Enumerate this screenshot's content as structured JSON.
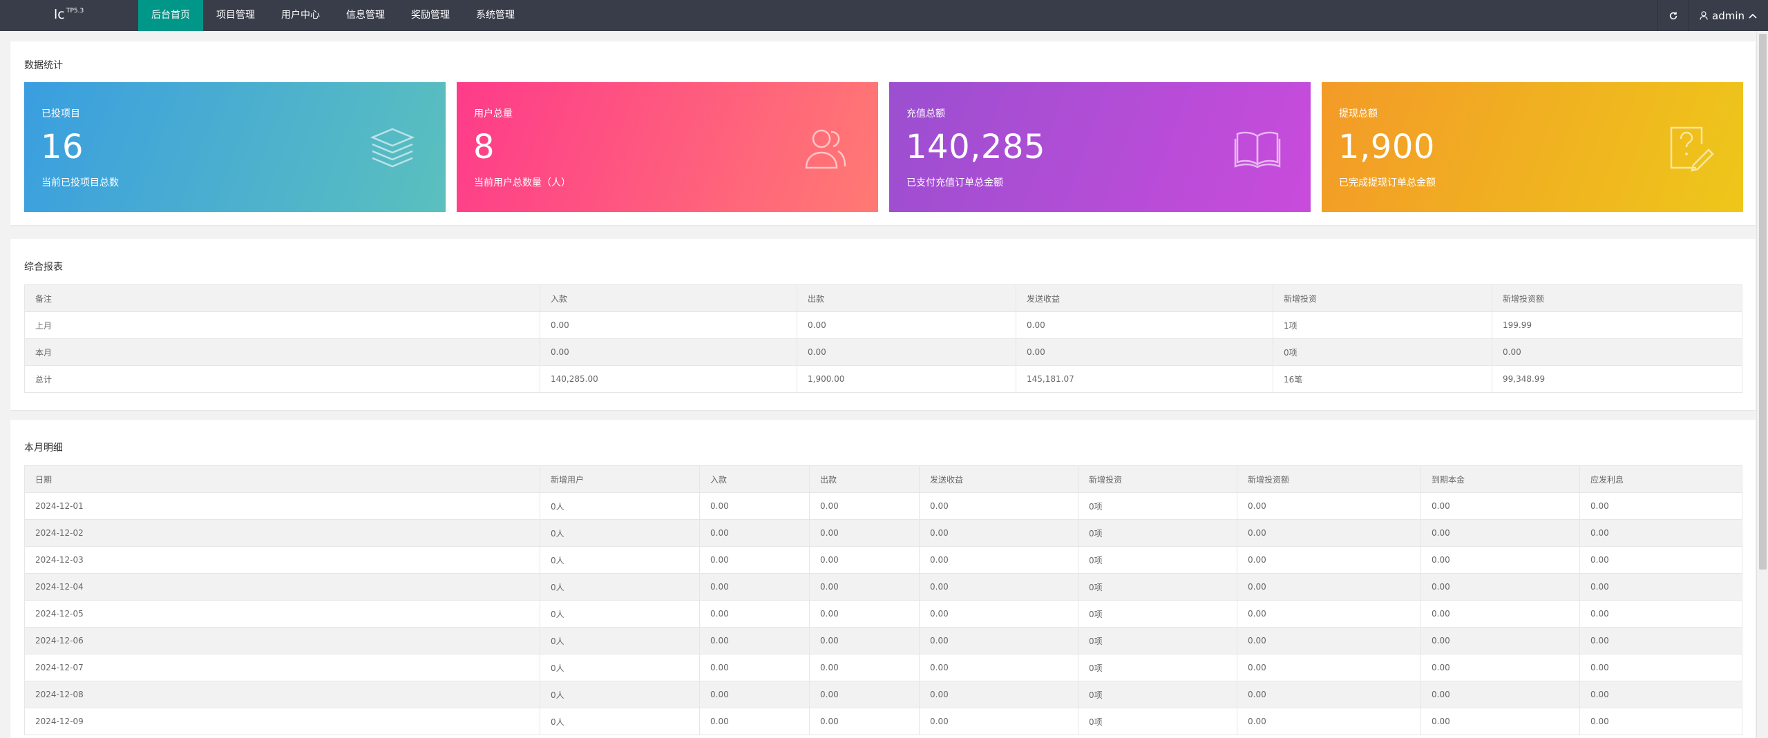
{
  "header": {
    "logo_main": "lc",
    "logo_sup": "TP5.3",
    "nav": [
      {
        "label": "后台首页",
        "active": true
      },
      {
        "label": "项目管理",
        "active": false
      },
      {
        "label": "用户中心",
        "active": false
      },
      {
        "label": "信息管理",
        "active": false
      },
      {
        "label": "奖励管理",
        "active": false
      },
      {
        "label": "系统管理",
        "active": false
      }
    ],
    "refresh_icon": "refresh-icon",
    "user": "admin"
  },
  "stats": {
    "title": "数据统计",
    "cards": [
      {
        "label": "已投项目",
        "value": "16",
        "desc": "当前已投项目总数",
        "icon": "layers-icon",
        "gradient": [
          "#3a9ee0",
          "#5bc0be"
        ]
      },
      {
        "label": "用户总量",
        "value": "8",
        "desc": "当前用户总数量（人）",
        "icon": "users-icon",
        "gradient": [
          "#fe3b8a",
          "#ff7a73"
        ]
      },
      {
        "label": "充值总额",
        "value": "140,285",
        "desc": "已支付充值订单总金额",
        "icon": "book-icon",
        "gradient": [
          "#9b4fd0",
          "#c94bdc"
        ]
      },
      {
        "label": "提现总额",
        "value": "1,900",
        "desc": "已完成提现订单总金额",
        "icon": "edit-icon",
        "gradient": [
          "#f39a28",
          "#eec71a"
        ]
      }
    ]
  },
  "report": {
    "title": "综合报表",
    "columns": [
      "备注",
      "入款",
      "出款",
      "发送收益",
      "新增投资",
      "新增投资额"
    ],
    "rows": [
      [
        "上月",
        "0.00",
        "0.00",
        "0.00",
        "1项",
        "199.99"
      ],
      [
        "本月",
        "0.00",
        "0.00",
        "0.00",
        "0项",
        "0.00"
      ],
      [
        "总计",
        "140,285.00",
        "1,900.00",
        "145,181.07",
        "16笔",
        "99,348.99"
      ]
    ]
  },
  "monthly": {
    "title": "本月明细",
    "columns": [
      "日期",
      "新增用户",
      "入款",
      "出款",
      "发送收益",
      "新增投资",
      "新增投资额",
      "到期本金",
      "应发利息"
    ],
    "rows": [
      [
        "2024-12-01",
        "0人",
        "0.00",
        "0.00",
        "0.00",
        "0项",
        "0.00",
        "0.00",
        "0.00"
      ],
      [
        "2024-12-02",
        "0人",
        "0.00",
        "0.00",
        "0.00",
        "0项",
        "0.00",
        "0.00",
        "0.00"
      ],
      [
        "2024-12-03",
        "0人",
        "0.00",
        "0.00",
        "0.00",
        "0项",
        "0.00",
        "0.00",
        "0.00"
      ],
      [
        "2024-12-04",
        "0人",
        "0.00",
        "0.00",
        "0.00",
        "0项",
        "0.00",
        "0.00",
        "0.00"
      ],
      [
        "2024-12-05",
        "0人",
        "0.00",
        "0.00",
        "0.00",
        "0项",
        "0.00",
        "0.00",
        "0.00"
      ],
      [
        "2024-12-06",
        "0人",
        "0.00",
        "0.00",
        "0.00",
        "0项",
        "0.00",
        "0.00",
        "0.00"
      ],
      [
        "2024-12-07",
        "0人",
        "0.00",
        "0.00",
        "0.00",
        "0项",
        "0.00",
        "0.00",
        "0.00"
      ],
      [
        "2024-12-08",
        "0人",
        "0.00",
        "0.00",
        "0.00",
        "0项",
        "0.00",
        "0.00",
        "0.00"
      ],
      [
        "2024-12-09",
        "0人",
        "0.00",
        "0.00",
        "0.00",
        "0项",
        "0.00",
        "0.00",
        "0.00"
      ]
    ]
  }
}
